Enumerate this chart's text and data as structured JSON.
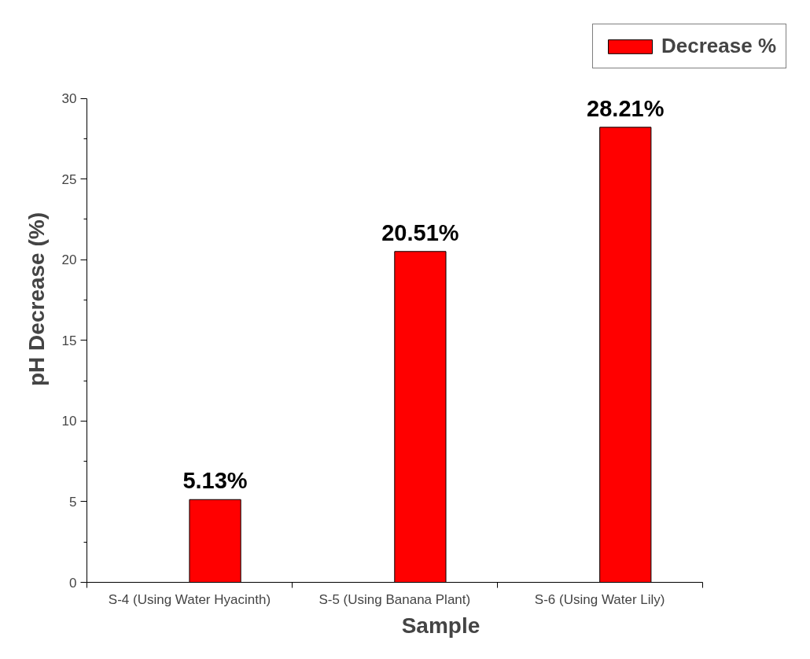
{
  "chart_data": {
    "type": "bar",
    "xlabel": "Sample",
    "ylabel": "pH Decrease (%)",
    "categories": [
      "S-4 (Using Water Hyacinth)",
      "S-5 (Using Banana Plant)",
      "S-6 (Using Water Lily)"
    ],
    "series": [
      {
        "name": "Decrease %",
        "color": "#ff0000",
        "values": [
          5.13,
          20.51,
          28.21
        ],
        "value_labels": [
          "5.13%",
          "20.51%",
          "28.21%"
        ]
      }
    ],
    "ylim": [
      0,
      30
    ],
    "yticks": [
      0,
      5,
      10,
      15,
      20,
      25,
      30
    ],
    "grid": false,
    "legend": "top right"
  }
}
